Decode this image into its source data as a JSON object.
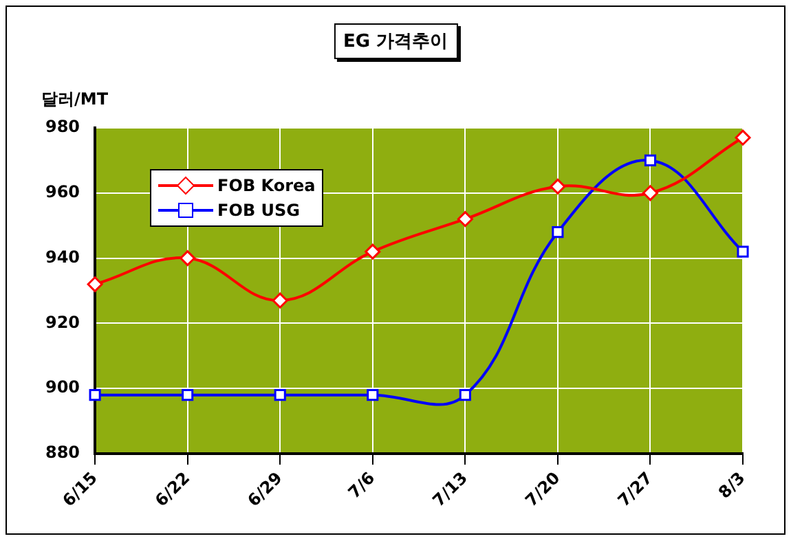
{
  "chart_data": {
    "type": "line",
    "title": "EG 가격추이",
    "ylabel": "달러/MT",
    "categories": [
      "6/15",
      "6/22",
      "6/29",
      "7/6",
      "7/13",
      "7/20",
      "7/27",
      "8/3"
    ],
    "series": [
      {
        "name": "FOB Korea",
        "color": "#ff0000",
        "marker": "diamond",
        "values": [
          932,
          940,
          927,
          942,
          952,
          962,
          960,
          977
        ]
      },
      {
        "name": "FOB USG",
        "color": "#0000ff",
        "marker": "square",
        "values": [
          898,
          898,
          898,
          898,
          898,
          948,
          970,
          942
        ]
      }
    ],
    "ylim": [
      880,
      980
    ],
    "yticks": [
      880,
      900,
      920,
      940,
      960,
      980
    ],
    "grid": true,
    "legend": "top left",
    "line_style": "solid"
  }
}
